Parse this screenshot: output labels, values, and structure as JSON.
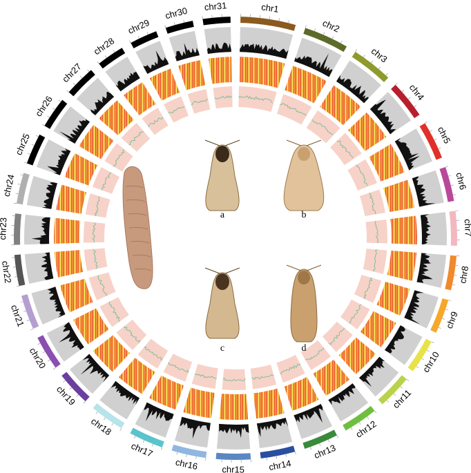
{
  "chromosomes": [
    {
      "label": "chr1",
      "color": "#8b5a1f"
    },
    {
      "label": "chr2",
      "color": "#5c6b2a"
    },
    {
      "label": "chr3",
      "color": "#8f9a2c"
    },
    {
      "label": "chr4",
      "color": "#b81f2e"
    },
    {
      "label": "chr5",
      "color": "#e0302a"
    },
    {
      "label": "chr6",
      "color": "#b8499a"
    },
    {
      "label": "chr7",
      "color": "#f2b8c0"
    },
    {
      "label": "chr8",
      "color": "#f08a2c"
    },
    {
      "label": "chr9",
      "color": "#f5a82a"
    },
    {
      "label": "chr10",
      "color": "#e8e24a"
    },
    {
      "label": "chr11",
      "color": "#b8d34a"
    },
    {
      "label": "chr12",
      "color": "#6fbf3f"
    },
    {
      "label": "chr13",
      "color": "#3a8a3c"
    },
    {
      "label": "chr14",
      "color": "#2a4fa0"
    },
    {
      "label": "chr15",
      "color": "#5b86c4"
    },
    {
      "label": "chr16",
      "color": "#8fb7e0"
    },
    {
      "label": "chr17",
      "color": "#5bc3cc"
    },
    {
      "label": "chr18",
      "color": "#b7e3ea"
    },
    {
      "label": "chr19",
      "color": "#6a3fa0"
    },
    {
      "label": "chr20",
      "color": "#8a4fb0"
    },
    {
      "label": "chr21",
      "color": "#b59ed0"
    },
    {
      "label": "chr22",
      "color": "#555555"
    },
    {
      "label": "chr23",
      "color": "#808080"
    },
    {
      "label": "chr24",
      "color": "#b0b0b0"
    },
    {
      "label": "chr25",
      "color": "#000000"
    },
    {
      "label": "chr26",
      "color": "#000000"
    },
    {
      "label": "chr27",
      "color": "#000000"
    },
    {
      "label": "chr28",
      "color": "#000000"
    },
    {
      "label": "chr29",
      "color": "#000000"
    },
    {
      "label": "chr30",
      "color": "#000000"
    },
    {
      "label": "chr31",
      "color": "#000000"
    }
  ],
  "panels": [
    "a",
    "b",
    "c",
    "d"
  ]
}
